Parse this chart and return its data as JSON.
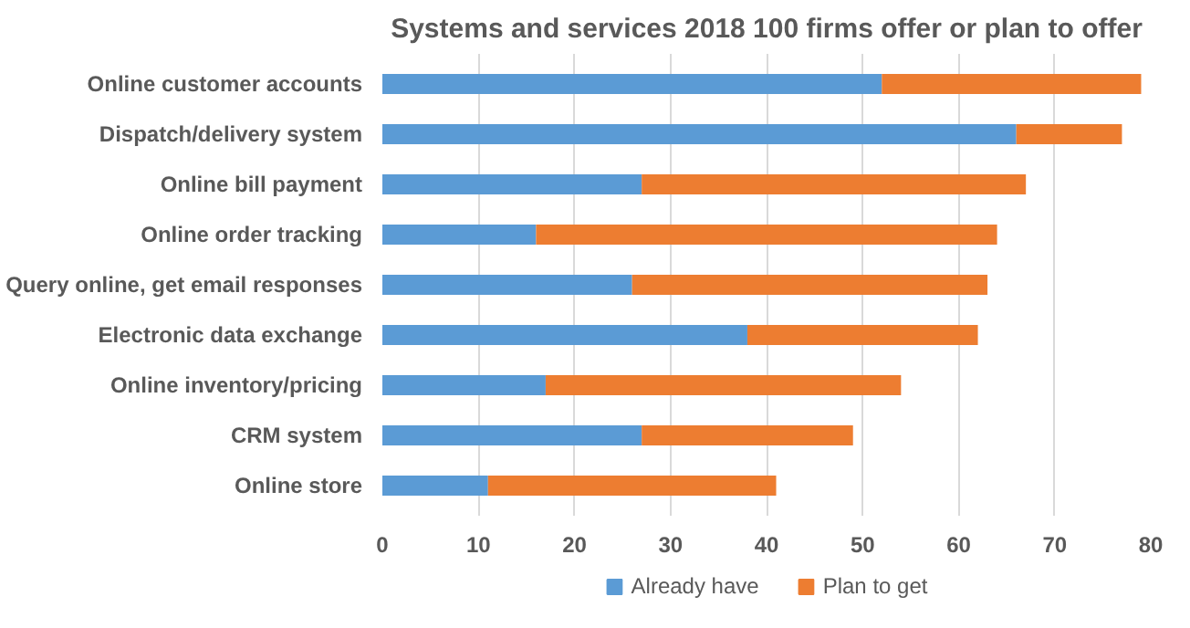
{
  "chart_data": {
    "type": "bar",
    "orientation": "horizontal",
    "stacked": true,
    "title": "Systems and services 2018 100 firms offer or plan to offer",
    "categories": [
      "Online customer accounts",
      "Dispatch/delivery system",
      "Online bill payment",
      "Online order tracking",
      "Query online, get email responses",
      "Electronic data exchange",
      "Online inventory/pricing",
      "CRM system",
      "Online store"
    ],
    "series": [
      {
        "name": "Already have",
        "color": "#5b9bd5",
        "values": [
          52,
          66,
          27,
          16,
          26,
          38,
          17,
          27,
          11
        ]
      },
      {
        "name": "Plan to get",
        "color": "#ed7d31",
        "values": [
          27,
          11,
          40,
          48,
          37,
          24,
          37,
          22,
          30
        ]
      }
    ],
    "xlim": [
      0,
      80
    ],
    "xticks": [
      0,
      10,
      20,
      30,
      40,
      50,
      60,
      70,
      80
    ],
    "grid": "x",
    "legend": "bottom"
  }
}
